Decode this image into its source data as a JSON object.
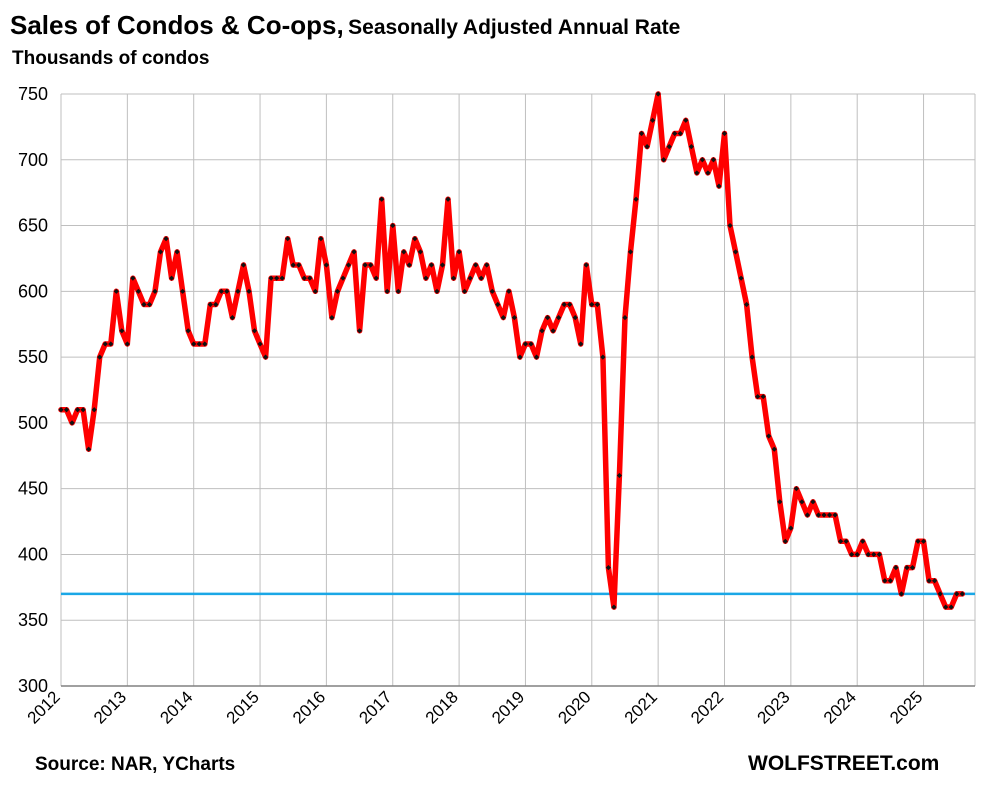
{
  "header": {
    "title_main": "Sales of Condos  & Co-ops,",
    "title_sub": "Seasonally Adjusted Annual Rate",
    "y_unit": "Thousands of condos"
  },
  "footer": {
    "source": "Source: NAR, YCharts",
    "brand": "WOLFSTREET.com"
  },
  "colors": {
    "series": "#ff0000",
    "marker": "#111111",
    "reference_line": "#1aa7e6",
    "grid": "#bfbfbf"
  },
  "chart_data": {
    "type": "line",
    "title": "Sales of Condos  & Co-ops, Seasonally Adjusted Annual Rate",
    "ylabel": "Thousands of condos",
    "xlabel": "",
    "ylim": [
      300,
      750
    ],
    "yticks": [
      300,
      350,
      400,
      450,
      500,
      550,
      600,
      650,
      700,
      750
    ],
    "x_start": "2012-01",
    "x_tick_labels": [
      "2012",
      "2013",
      "2014",
      "2015",
      "2016",
      "2017",
      "2018",
      "2019",
      "2020",
      "2021",
      "2022",
      "2023",
      "2024",
      "2025"
    ],
    "grid": "vertical and horizontal",
    "reference_line": {
      "y": 370
    },
    "series": [
      {
        "values": [
          510,
          510,
          500,
          510,
          510,
          480,
          510,
          550,
          560,
          560,
          600,
          570,
          560,
          610,
          600,
          590,
          590,
          600,
          630,
          640,
          610,
          630,
          600,
          570,
          560,
          560,
          560,
          590,
          590,
          600,
          600,
          580,
          600,
          620,
          600,
          570,
          560,
          550,
          610,
          610,
          610,
          640,
          620,
          620,
          610,
          610,
          600,
          640,
          620,
          580,
          600,
          610,
          620,
          630,
          570,
          620,
          620,
          610,
          670,
          600,
          650,
          600,
          630,
          620,
          640,
          630,
          610,
          620,
          600,
          620,
          670,
          610,
          630,
          600,
          610,
          620,
          610,
          620,
          600,
          590,
          580,
          600,
          580,
          550,
          560,
          560,
          550,
          570,
          580,
          570,
          580,
          590,
          590,
          580,
          560,
          620,
          590,
          590,
          550,
          390,
          360,
          460,
          580,
          630,
          670,
          720,
          710,
          730,
          750,
          700,
          710,
          720,
          720,
          730,
          710,
          690,
          700,
          690,
          700,
          680,
          720,
          650,
          630,
          610,
          590,
          550,
          520,
          520,
          490,
          480,
          440,
          410,
          420,
          450,
          440,
          430,
          440,
          430,
          430,
          430,
          430,
          410,
          410,
          400,
          400,
          410,
          400,
          400,
          400,
          380,
          380,
          390,
          370,
          390,
          390,
          410,
          410,
          380,
          380,
          370,
          360,
          360,
          370,
          370
        ]
      }
    ]
  }
}
